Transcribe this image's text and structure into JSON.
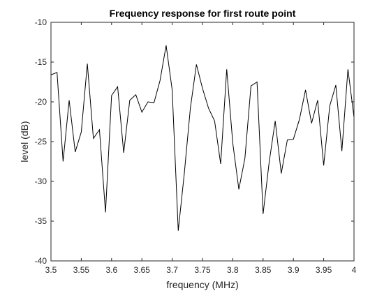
{
  "chart_data": {
    "type": "line",
    "title": "Frequency response for first route point",
    "xlabel": "frequency (MHz)",
    "ylabel": "level (dB)",
    "xlim": [
      3.5,
      4.0
    ],
    "ylim": [
      -40,
      -10
    ],
    "xticks": [
      "3.5",
      "3.55",
      "3.6",
      "3.65",
      "3.7",
      "3.75",
      "3.8",
      "3.85",
      "3.9",
      "3.95",
      "4"
    ],
    "yticks": [
      "-10",
      "-15",
      "-20",
      "-25",
      "-30",
      "-35",
      "-40"
    ],
    "grid": false,
    "line_color": "#000000",
    "series": [
      {
        "x": [
          3.5,
          3.51,
          3.52,
          3.53,
          3.54,
          3.55,
          3.56,
          3.57,
          3.58,
          3.59,
          3.6,
          3.61,
          3.62,
          3.63,
          3.64,
          3.65,
          3.66,
          3.67,
          3.68,
          3.69,
          3.7,
          3.71,
          3.72,
          3.73,
          3.74,
          3.75,
          3.76,
          3.77,
          3.78,
          3.79,
          3.8,
          3.81,
          3.82,
          3.83,
          3.84,
          3.85,
          3.86,
          3.87,
          3.88,
          3.89,
          3.9,
          3.91,
          3.92,
          3.93,
          3.94,
          3.95,
          3.96,
          3.97,
          3.98,
          3.99,
          4.0
        ],
        "values": [
          -16.6,
          -16.3,
          -27.5,
          -19.8,
          -26.3,
          -23.8,
          -15.2,
          -24.6,
          -23.5,
          -33.9,
          -19.2,
          -18.1,
          -26.4,
          -19.8,
          -19.1,
          -21.3,
          -20.0,
          -20.1,
          -17.3,
          -12.9,
          -18.5,
          -36.2,
          -29.0,
          -20.8,
          -15.3,
          -18.3,
          -20.8,
          -22.4,
          -27.8,
          -15.9,
          -25.2,
          -31.0,
          -27.1,
          -18.0,
          -17.5,
          -34.1,
          -27.6,
          -22.4,
          -29.0,
          -24.8,
          -24.7,
          -22.2,
          -18.5,
          -22.7,
          -19.8,
          -28.0,
          -20.5,
          -17.9,
          -26.2,
          -15.9,
          -21.9
        ]
      }
    ]
  }
}
